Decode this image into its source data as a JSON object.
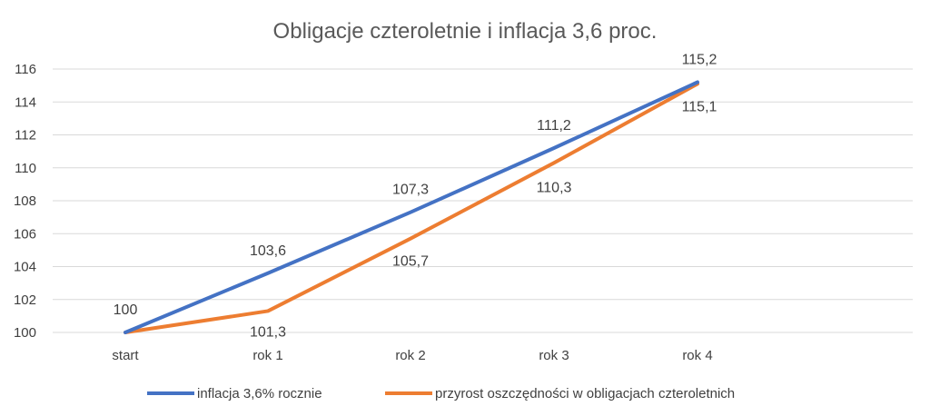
{
  "chart_data": {
    "type": "line",
    "title": "Obligacje czteroletnie i inflacja 3,6 proc.",
    "categories": [
      "start",
      "rok 1",
      "rok 2",
      "rok 3",
      "rok 4"
    ],
    "ylim": [
      100,
      116
    ],
    "yticks": [
      100,
      102,
      104,
      106,
      108,
      110,
      112,
      114,
      116
    ],
    "grid": true,
    "legend_position": "bottom",
    "series": [
      {
        "name": "inflacja 3,6% rocznie",
        "color": "#4472C4",
        "values": [
          100,
          103.6,
          107.3,
          111.2,
          115.2
        ],
        "labels": [
          "100",
          "103,6",
          "107,3",
          "111,2",
          "115,2"
        ]
      },
      {
        "name": "przyrost oszczędności w obligacjach czteroletnich",
        "color": "#ED7D31",
        "values": [
          100,
          101.3,
          105.7,
          110.3,
          115.1
        ],
        "labels": [
          "",
          "101,3",
          "105,7",
          "110,3",
          "115,1"
        ]
      }
    ]
  }
}
